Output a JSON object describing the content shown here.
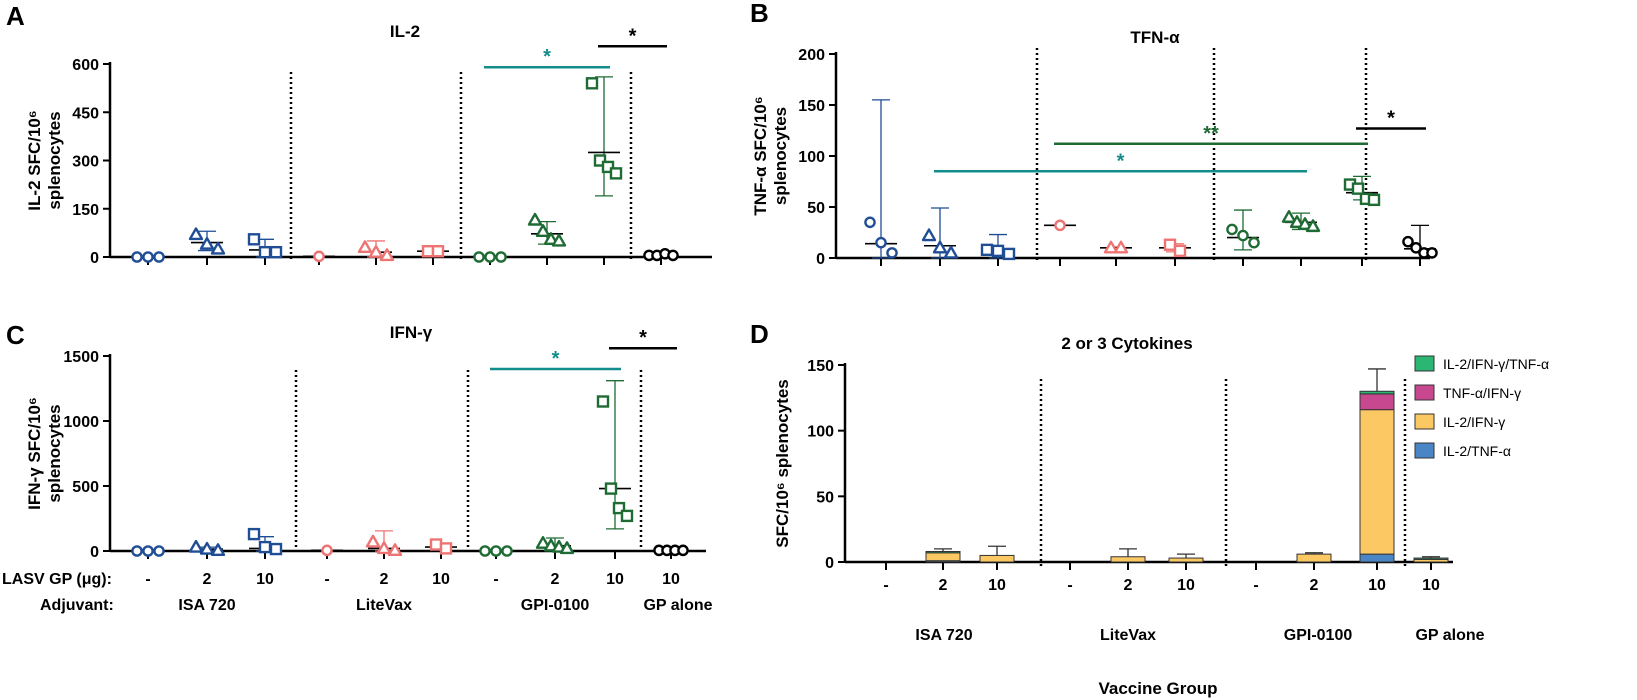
{
  "colors": {
    "ISA 720": "#1f4e96",
    "LiteVax": "#ee7474",
    "GPI-0100": "#1f6b34",
    "GP alone": "#000000",
    "sig_teal": "#138c8c",
    "sig_green": "#1f6b34",
    "IL-2/IFN-γ/TNF-α": "#2bb673",
    "TNF-α/IFN-γ": "#c8488f",
    "IL-2/IFN-γ": "#fcc864",
    "IL-2/TNF-α": "#4a86c5"
  },
  "figure": {
    "row_labels": {
      "gp": "LASV GP (μg):",
      "adjuvant": "Adjuvant:"
    },
    "dose_labels": [
      "-",
      "2",
      "10",
      "-",
      "2",
      "10",
      "-",
      "2",
      "10",
      "10"
    ],
    "adjuvant_labels": [
      "ISA 720",
      "LiteVax",
      "GPI-0100",
      "GP alone"
    ],
    "x_axis_title": "Vaccine Group"
  },
  "chart_data": [
    {
      "panel": "A",
      "type": "scatter",
      "title": "IL-2",
      "ylabel": "IL-2 SFC/10⁶ splenocytes",
      "ylim": [
        0,
        600
      ],
      "yticks": [
        0,
        150,
        300,
        450,
        600
      ],
      "categories": [
        "ISA 720 -",
        "ISA 720 2",
        "ISA 720 10",
        "LiteVax -",
        "LiteVax 2",
        "LiteVax 10",
        "GPI-0100 -",
        "GPI-0100 2",
        "GPI-0100 10",
        "GP alone 10"
      ],
      "groups": [
        {
          "adjuvant": "ISA 720",
          "dose": "-",
          "marker": "circle",
          "points": [
            0,
            0,
            0
          ],
          "mean": 0,
          "sd": [
            0,
            0
          ]
        },
        {
          "adjuvant": "ISA 720",
          "dose": "2",
          "marker": "triangle",
          "points": [
            70,
            40,
            25
          ],
          "mean": 45,
          "sd": [
            20,
            80
          ]
        },
        {
          "adjuvant": "ISA 720",
          "dose": "10",
          "marker": "square",
          "points": [
            55,
            15,
            15
          ],
          "mean": 22,
          "sd": [
            0,
            55
          ]
        },
        {
          "adjuvant": "LiteVax",
          "dose": "-",
          "marker": "circle",
          "points": [
            2
          ],
          "mean": 2,
          "sd": [
            2,
            2
          ]
        },
        {
          "adjuvant": "LiteVax",
          "dose": "2",
          "marker": "triangle",
          "points": [
            30,
            15,
            5
          ],
          "mean": 15,
          "sd": [
            0,
            50
          ]
        },
        {
          "adjuvant": "LiteVax",
          "dose": "10",
          "marker": "square",
          "points": [
            18,
            18
          ],
          "mean": 18,
          "sd": [
            15,
            22
          ]
        },
        {
          "adjuvant": "GPI-0100",
          "dose": "-",
          "marker": "circle",
          "points": [
            0,
            0,
            0
          ],
          "mean": 0,
          "sd": [
            0,
            0
          ]
        },
        {
          "adjuvant": "GPI-0100",
          "dose": "2",
          "marker": "triangle",
          "points": [
            115,
            80,
            55,
            50
          ],
          "mean": 72,
          "sd": [
            40,
            110
          ]
        },
        {
          "adjuvant": "GPI-0100",
          "dose": "10",
          "marker": "square",
          "points": [
            540,
            300,
            280,
            260
          ],
          "mean": 325,
          "sd": [
            190,
            560
          ]
        },
        {
          "adjuvant": "GP alone",
          "dose": "10",
          "marker": "circle",
          "points": [
            5,
            5,
            10,
            5
          ],
          "mean": 5,
          "sd": [
            0,
            12
          ]
        }
      ],
      "dividers_after": [
        3,
        6,
        9
      ],
      "significance": [
        {
          "from": 6,
          "to": 8,
          "label": "*",
          "color": "sig_teal",
          "y": 590
        },
        {
          "from": 8,
          "to": 9,
          "label": "*",
          "color": "black",
          "y": 655
        }
      ]
    },
    {
      "panel": "B",
      "type": "scatter",
      "title": "TFN-α",
      "ylabel": "TNF-α SFC/10⁶ splenocytes",
      "ylim": [
        0,
        200
      ],
      "yticks": [
        0,
        50,
        100,
        150,
        200
      ],
      "categories": [
        "ISA 720 -",
        "ISA 720 2",
        "ISA 720 10",
        "LiteVax -",
        "LiteVax 2",
        "LiteVax 10",
        "GPI-0100 -",
        "GPI-0100 2",
        "GPI-0100 10",
        "GP alone 10"
      ],
      "groups": [
        {
          "adjuvant": "ISA 720",
          "dose": "-",
          "marker": "circle",
          "points": [
            35,
            15,
            5
          ],
          "mean": 14,
          "sd": [
            0,
            155
          ]
        },
        {
          "adjuvant": "ISA 720",
          "dose": "2",
          "marker": "triangle",
          "points": [
            22,
            10,
            5
          ],
          "mean": 12,
          "sd": [
            0,
            49
          ]
        },
        {
          "adjuvant": "ISA 720",
          "dose": "10",
          "marker": "square",
          "points": [
            8,
            7,
            4
          ],
          "mean": 7,
          "sd": [
            0,
            23
          ]
        },
        {
          "adjuvant": "LiteVax",
          "dose": "-",
          "marker": "circle",
          "points": [
            32
          ],
          "mean": 32,
          "sd": [
            32,
            32
          ]
        },
        {
          "adjuvant": "LiteVax",
          "dose": "2",
          "marker": "triangle",
          "points": [
            10,
            10
          ],
          "mean": 10,
          "sd": [
            9,
            11
          ]
        },
        {
          "adjuvant": "LiteVax",
          "dose": "10",
          "marker": "square",
          "points": [
            13,
            7
          ],
          "mean": 10,
          "sd": [
            6,
            14
          ]
        },
        {
          "adjuvant": "GPI-0100",
          "dose": "-",
          "marker": "circle",
          "points": [
            28,
            22,
            15
          ],
          "mean": 20,
          "sd": [
            8,
            47
          ]
        },
        {
          "adjuvant": "GPI-0100",
          "dose": "2",
          "marker": "triangle",
          "points": [
            40,
            35,
            33,
            31
          ],
          "mean": 35,
          "sd": [
            28,
            44
          ]
        },
        {
          "adjuvant": "GPI-0100",
          "dose": "10",
          "marker": "square",
          "points": [
            72,
            68,
            58,
            57
          ],
          "mean": 64,
          "sd": [
            57,
            80
          ]
        },
        {
          "adjuvant": "GP alone",
          "dose": "10",
          "marker": "circle",
          "points": [
            16,
            10,
            5,
            5
          ],
          "mean": 9,
          "sd": [
            0,
            32
          ]
        }
      ],
      "dividers_after": [
        3,
        6,
        9
      ],
      "significance": [
        {
          "from": 1,
          "to": 7,
          "label": "*",
          "color": "sig_teal",
          "y": 85
        },
        {
          "from": 3,
          "to": 8,
          "label": "**",
          "color": "sig_green",
          "y": 112
        },
        {
          "from": 8,
          "to": 9,
          "label": "*",
          "color": "black",
          "y": 127
        }
      ]
    },
    {
      "panel": "C",
      "type": "scatter",
      "title": "IFN-γ",
      "ylabel": "IFN-γ SFC/10⁶ splenocytes",
      "ylim": [
        0,
        1500
      ],
      "yticks": [
        0,
        500,
        1000,
        1500
      ],
      "categories": [
        "ISA 720 -",
        "ISA 720 2",
        "ISA 720 10",
        "LiteVax -",
        "LiteVax 2",
        "LiteVax 10",
        "GPI-0100 -",
        "GPI-0100 2",
        "GPI-0100 10",
        "GP alone 10"
      ],
      "groups": [
        {
          "adjuvant": "ISA 720",
          "dose": "-",
          "marker": "circle",
          "points": [
            0,
            0,
            0
          ],
          "mean": 0,
          "sd": [
            0,
            0
          ]
        },
        {
          "adjuvant": "ISA 720",
          "dose": "2",
          "marker": "triangle",
          "points": [
            30,
            15,
            5
          ],
          "mean": 15,
          "sd": [
            0,
            30
          ]
        },
        {
          "adjuvant": "ISA 720",
          "dose": "10",
          "marker": "square",
          "points": [
            130,
            30,
            15
          ],
          "mean": 20,
          "sd": [
            0,
            110
          ]
        },
        {
          "adjuvant": "LiteVax",
          "dose": "-",
          "marker": "circle",
          "points": [
            5
          ],
          "mean": 5,
          "sd": [
            5,
            5
          ]
        },
        {
          "adjuvant": "LiteVax",
          "dose": "2",
          "marker": "triangle",
          "points": [
            70,
            20,
            5
          ],
          "mean": 20,
          "sd": [
            0,
            155
          ]
        },
        {
          "adjuvant": "LiteVax",
          "dose": "10",
          "marker": "square",
          "points": [
            50,
            20
          ],
          "mean": 30,
          "sd": [
            10,
            55
          ]
        },
        {
          "adjuvant": "GPI-0100",
          "dose": "-",
          "marker": "circle",
          "points": [
            0,
            0,
            0
          ],
          "mean": 0,
          "sd": [
            0,
            0
          ]
        },
        {
          "adjuvant": "GPI-0100",
          "dose": "2",
          "marker": "triangle",
          "points": [
            60,
            40,
            30,
            20
          ],
          "mean": 40,
          "sd": [
            0,
            100
          ]
        },
        {
          "adjuvant": "GPI-0100",
          "dose": "10",
          "marker": "square",
          "points": [
            1150,
            480,
            330,
            270
          ],
          "mean": 480,
          "sd": [
            170,
            1310
          ]
        },
        {
          "adjuvant": "GP alone",
          "dose": "10",
          "marker": "circle",
          "points": [
            5,
            5,
            5,
            5
          ],
          "mean": 5,
          "sd": [
            0,
            5
          ]
        }
      ],
      "dividers_after": [
        3,
        6,
        9
      ],
      "significance": [
        {
          "from": 6,
          "to": 8,
          "label": "*",
          "color": "sig_teal",
          "y": 1400
        },
        {
          "from": 8,
          "to": 9,
          "label": "*",
          "color": "black",
          "y": 1560
        }
      ]
    },
    {
      "panel": "D",
      "type": "bar",
      "stacked": true,
      "title": "2 or 3 Cytokines",
      "ylabel": "SFC/10⁶ splenocytes",
      "ylim": [
        0,
        150
      ],
      "yticks": [
        0,
        50,
        100,
        150
      ],
      "categories": [
        "ISA 720 -",
        "ISA 720 2",
        "ISA 720 10",
        "LiteVax -",
        "LiteVax 2",
        "LiteVax 10",
        "GPI-0100 -",
        "GPI-0100 2",
        "GPI-0100 10",
        "GP alone 10"
      ],
      "series": [
        {
          "name": "IL-2/TNF-α",
          "color_key": "IL-2/TNF-α",
          "values": [
            0,
            1,
            0,
            0,
            0,
            0,
            0,
            0,
            6,
            0
          ]
        },
        {
          "name": "IL-2/IFN-γ",
          "color_key": "IL-2/IFN-γ",
          "values": [
            0,
            6,
            5,
            0,
            4,
            3,
            0,
            6,
            110,
            2
          ]
        },
        {
          "name": "TNF-α/IFN-γ",
          "color_key": "TNF-α/IFN-γ",
          "values": [
            0,
            0,
            0,
            0,
            0,
            0,
            0,
            0,
            12,
            0
          ]
        },
        {
          "name": "IL-2/IFN-γ/TNF-α",
          "color_key": "IL-2/IFN-γ/TNF-α",
          "values": [
            0,
            1,
            0,
            0,
            0,
            0,
            0,
            0,
            2,
            1
          ]
        }
      ],
      "error_top": [
        0,
        10,
        12,
        0,
        10,
        6,
        0,
        7,
        147,
        4
      ],
      "legend": [
        "IL-2/IFN-γ/TNF-α",
        "TNF-α/IFN-γ",
        "IL-2/IFN-γ",
        "IL-2/TNF-α"
      ],
      "legend_position": "top-right",
      "dividers_after": [
        3,
        6,
        9
      ]
    }
  ]
}
